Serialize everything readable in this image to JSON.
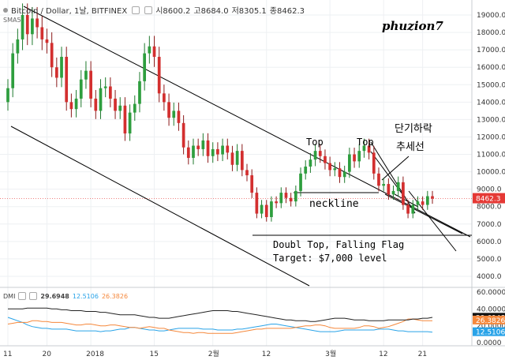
{
  "legend": {
    "symbol": "Bitcoin / Dollar, 1날, BITFINEX",
    "open": "시8600.2",
    "high": "고8684.0",
    "low": "저8305.1",
    "close": "종8462.3"
  },
  "indicator_label": "SMA5",
  "watermark": "phuzion7",
  "annotations": {
    "top1": "Top",
    "top2": "Top",
    "neckline": "neckline",
    "korean1": "단기하락",
    "korean2": "추세선",
    "pattern": "Doubl Top, Falling Flag",
    "target": "Target: $7,000 level"
  },
  "price_axis": [
    "19000.0",
    "18000.0",
    "17000.0",
    "16000.0",
    "15000.0",
    "14000.0",
    "13000.0",
    "12000.0",
    "11000.0",
    "10000.0",
    "9000.0",
    "8000.0",
    "7000.0",
    "6000.0",
    "5000.0",
    "4000.0"
  ],
  "price_tag": "8462.3",
  "dmi": {
    "label": "DMI",
    "adx": "29.6948",
    "di_minus": "12.5106",
    "di_plus": "26.3826"
  },
  "dmi_axis": [
    "60.0000",
    "40.0000",
    "20.0000",
    "0.0000"
  ],
  "x_axis": [
    "11",
    "20",
    "2018",
    "15",
    "2월",
    "12",
    "3월",
    "12",
    "21"
  ],
  "colors": {
    "up": "#26a69a",
    "up_green": "#2e9e3e",
    "down": "#d32f2f",
    "adx": "#222222",
    "di_plus": "#f5883c",
    "di_minus": "#29a3e8",
    "price_tag": "#e53935"
  },
  "chart_data": {
    "type": "candlestick",
    "ylim": [
      4000,
      19500
    ],
    "open": [
      14000,
      14800,
      16800,
      17600,
      19000,
      17900,
      18800,
      18300,
      17600,
      17400,
      16000,
      15400,
      16600,
      14000,
      13600,
      14200,
      15300,
      15800,
      14200,
      13500,
      14800,
      14900,
      14200,
      13500,
      13800,
      12200,
      13400,
      13900,
      15200,
      16800,
      17200,
      16600,
      14500,
      14000,
      13100,
      13500,
      12800,
      11400,
      10800,
      11500,
      11300,
      11800,
      10900,
      11300,
      11000,
      11500,
      11100,
      10400,
      11200,
      10100,
      9800,
      8800,
      7600,
      8100,
      7400,
      8300,
      8200,
      8800,
      8500,
      8300,
      8900,
      9900,
      10300,
      10700,
      11200,
      10900,
      10500,
      10100,
      10200,
      9700,
      10000,
      11000,
      10600,
      11200,
      11500,
      11100,
      9900,
      9200,
      9300,
      8700,
      8900,
      9400,
      8100,
      7600,
      8100,
      8300,
      8100,
      8600
    ],
    "close": [
      14800,
      16800,
      17600,
      19000,
      17900,
      18800,
      18300,
      17600,
      17400,
      16000,
      15400,
      16600,
      14000,
      13600,
      14200,
      15300,
      15800,
      14200,
      13500,
      14800,
      14900,
      14200,
      13500,
      13800,
      12200,
      13400,
      13900,
      15200,
      16800,
      17200,
      16600,
      14500,
      14000,
      13100,
      13500,
      12800,
      11400,
      10800,
      11500,
      11300,
      11800,
      10900,
      11300,
      11000,
      11500,
      11100,
      10400,
      11200,
      10100,
      9800,
      8800,
      7600,
      8100,
      7400,
      8300,
      8200,
      8800,
      8500,
      8300,
      8900,
      9900,
      10300,
      10700,
      11200,
      10900,
      10500,
      10100,
      10200,
      9700,
      10000,
      11000,
      10600,
      11200,
      11500,
      11100,
      9900,
      9200,
      9300,
      8700,
      8900,
      9400,
      8100,
      7600,
      8100,
      8300,
      8100,
      8600,
      8462
    ],
    "adx": [
      40,
      40,
      40,
      40,
      41,
      41,
      41,
      41,
      41,
      40,
      40,
      39,
      39,
      38,
      38,
      38,
      37,
      37,
      37,
      36,
      36,
      35,
      34,
      33,
      33,
      33,
      33,
      32,
      31,
      30,
      30,
      29,
      29,
      29,
      30,
      31,
      32,
      33,
      34,
      35,
      36,
      37,
      38,
      38,
      38,
      38,
      37,
      37,
      36,
      35,
      34,
      33,
      32,
      31,
      30,
      29,
      28,
      27,
      27,
      26,
      26,
      26,
      25,
      25,
      26,
      27,
      28,
      29,
      29,
      29,
      28,
      27,
      27,
      27,
      26,
      26,
      26,
      26,
      27,
      27,
      27,
      27,
      27,
      28,
      28,
      29,
      29,
      30
    ],
    "di_plus": [
      22,
      23,
      24,
      24,
      24,
      26,
      26,
      25,
      25,
      24,
      24,
      24,
      23,
      22,
      21,
      21,
      22,
      22,
      21,
      20,
      20,
      21,
      21,
      20,
      19,
      18,
      18,
      17,
      18,
      19,
      18,
      17,
      17,
      15,
      14,
      13,
      12,
      12,
      11,
      12,
      12,
      11,
      11,
      11,
      11,
      11,
      11,
      12,
      13,
      14,
      15,
      16,
      16,
      17,
      17,
      17,
      17,
      17,
      17,
      18,
      19,
      20,
      20,
      21,
      21,
      20,
      18,
      17,
      17,
      17,
      17,
      17,
      18,
      20,
      20,
      19,
      17,
      18,
      19,
      21,
      23,
      25,
      28,
      28,
      27,
      26,
      26,
      26
    ],
    "di_minus": [
      30,
      28,
      26,
      24,
      21,
      19,
      18,
      17,
      17,
      16,
      16,
      16,
      16,
      15,
      14,
      14,
      14,
      14,
      14,
      13,
      14,
      14,
      15,
      16,
      16,
      18,
      18,
      17,
      16,
      15,
      15,
      14,
      14,
      15,
      16,
      17,
      17,
      17,
      17,
      17,
      16,
      16,
      16,
      15,
      15,
      15,
      15,
      16,
      16,
      17,
      18,
      19,
      20,
      21,
      22,
      22,
      21,
      20,
      19,
      18,
      17,
      16,
      15,
      14,
      13,
      13,
      13,
      13,
      14,
      15,
      15,
      15,
      15,
      15,
      15,
      15,
      16,
      16,
      16,
      15,
      14,
      14,
      13,
      13,
      13,
      13,
      13,
      12.5
    ]
  }
}
